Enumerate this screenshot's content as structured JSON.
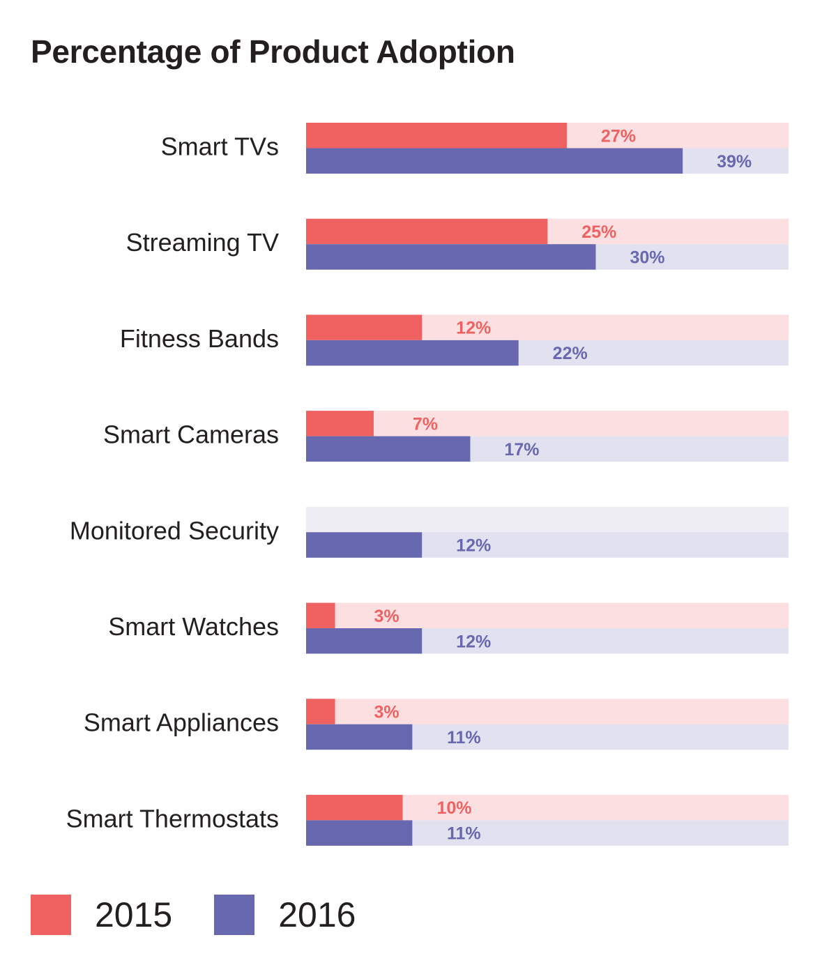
{
  "chart_data": {
    "type": "bar",
    "orientation": "horizontal",
    "title": "Percentage of Product Adoption",
    "categories": [
      "Smart TVs",
      "Streaming TV",
      "Fitness Bands",
      "Smart Cameras",
      "Monitored Security",
      "Smart Watches",
      "Smart Appliances",
      "Smart Thermostats"
    ],
    "series": [
      {
        "name": "2015",
        "color": "#f06262",
        "track_color": "#fce0e1",
        "values": [
          27,
          25,
          12,
          7,
          null,
          3,
          3,
          10
        ],
        "labels": [
          "27%",
          "25%",
          "12%",
          "7%",
          "",
          "3%",
          "3%",
          "10%"
        ]
      },
      {
        "name": "2016",
        "color": "#6868b0",
        "track_color": "#e1e1ef",
        "values": [
          39,
          30,
          22,
          17,
          12,
          12,
          11,
          11
        ],
        "labels": [
          "39%",
          "30%",
          "22%",
          "17%",
          "12%",
          "12%",
          "11%",
          "11%"
        ]
      }
    ],
    "empty_track_color": "#ededf3",
    "xlim": [
      0,
      50
    ],
    "grid": false,
    "legend_position": "bottom-left"
  }
}
